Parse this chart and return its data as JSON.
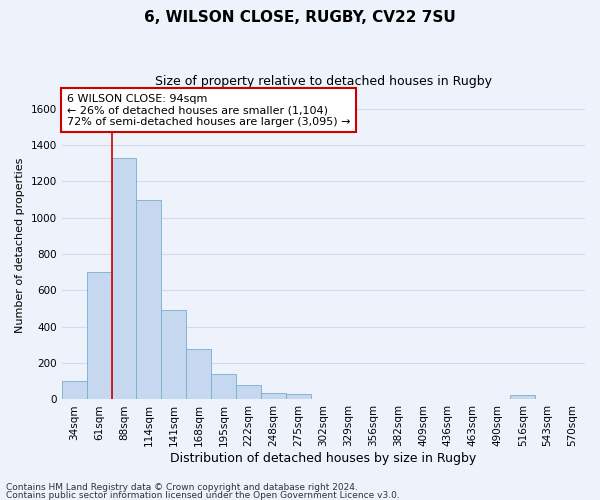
{
  "title1": "6, WILSON CLOSE, RUGBY, CV22 7SU",
  "title2": "Size of property relative to detached houses in Rugby",
  "xlabel": "Distribution of detached houses by size in Rugby",
  "ylabel": "Number of detached properties",
  "bin_labels": [
    "34sqm",
    "61sqm",
    "88sqm",
    "114sqm",
    "141sqm",
    "168sqm",
    "195sqm",
    "222sqm",
    "248sqm",
    "275sqm",
    "302sqm",
    "329sqm",
    "356sqm",
    "382sqm",
    "409sqm",
    "436sqm",
    "463sqm",
    "490sqm",
    "516sqm",
    "543sqm",
    "570sqm"
  ],
  "bar_values": [
    100,
    700,
    1330,
    1100,
    490,
    280,
    140,
    80,
    35,
    30,
    5,
    5,
    5,
    5,
    5,
    5,
    5,
    5,
    25,
    5,
    5
  ],
  "bar_color": "#c5d8f0",
  "bar_edge_color": "#7aadce",
  "property_bin_index": 2,
  "annotation_line1": "6 WILSON CLOSE: 94sqm",
  "annotation_line2": "← 26% of detached houses are smaller (1,104)",
  "annotation_line3": "72% of semi-detached houses are larger (3,095) →",
  "ylim": [
    0,
    1700
  ],
  "yticks": [
    0,
    200,
    400,
    600,
    800,
    1000,
    1200,
    1400,
    1600
  ],
  "footnote1": "Contains HM Land Registry data © Crown copyright and database right 2024.",
  "footnote2": "Contains public sector information licensed under the Open Government Licence v3.0.",
  "bg_color": "#eef2fa",
  "grid_color": "#d0daf0",
  "annotation_box_color": "#ffffff",
  "annotation_box_edge": "#cc0000",
  "redline_color": "#cc0000",
  "title1_fontsize": 11,
  "title2_fontsize": 9,
  "xlabel_fontsize": 9,
  "ylabel_fontsize": 8,
  "tick_fontsize": 7.5,
  "annot_fontsize": 8,
  "footnote_fontsize": 6.5
}
